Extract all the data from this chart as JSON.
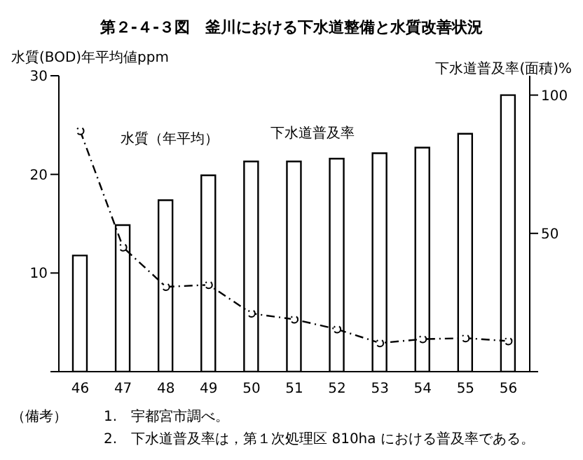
{
  "chart_data": {
    "type": "bar",
    "title": "第２-４-３図　釜川における下水道整備と水質改善状況",
    "ylabel": "水質(BOD)年平均値ppm",
    "y2label": "下水道普及率(面積)%",
    "categories": [
      "46",
      "47",
      "48",
      "49",
      "50",
      "51",
      "52",
      "53",
      "54",
      "55",
      "56"
    ],
    "series": [
      {
        "name": "下水道普及率",
        "axis": "y2",
        "color": "#ffffff",
        "values": [
          42,
          53,
          62,
          71,
          76,
          76,
          77,
          79,
          81,
          86,
          100
        ]
      },
      {
        "name": "水質（年平均）",
        "type": "line",
        "axis": "y",
        "color": "#000000",
        "marker": "circle",
        "line_style": "dashed",
        "values": [
          24.4,
          12.6,
          8.6,
          8.8,
          5.9,
          5.3,
          4.3,
          2.9,
          3.3,
          3.4,
          3.1
        ]
      }
    ],
    "ylim": [
      0,
      30
    ],
    "yticks": [
      {
        "value": 0,
        "label": null
      },
      10,
      20,
      30
    ],
    "y2lim": [
      0,
      107
    ],
    "y2ticks": [
      {
        "value": 0,
        "label": null
      },
      50,
      100
    ],
    "grid": false,
    "legend": false,
    "annotations": [
      "（備考）",
      "1.　宇都宮市調べ。",
      "2.　下水道普及率は，第１次処理区 810ha における普及率である。"
    ]
  }
}
